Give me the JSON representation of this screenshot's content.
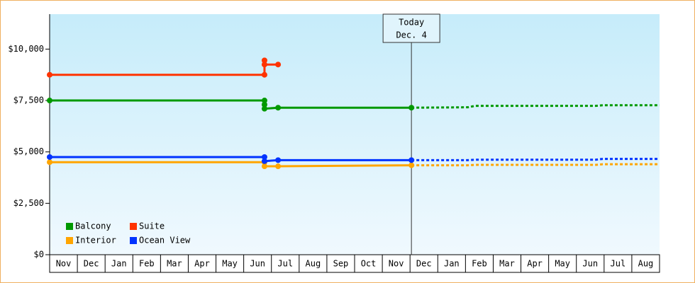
{
  "chart_data": {
    "type": "line",
    "categories": [
      "Nov",
      "Dec",
      "Jan",
      "Feb",
      "Mar",
      "Apr",
      "May",
      "Jun",
      "Jul",
      "Aug",
      "Sep",
      "Oct",
      "Nov",
      "Dec",
      "Jan",
      "Feb",
      "Mar",
      "Apr",
      "May",
      "Jun",
      "Jul",
      "Aug"
    ],
    "xlim": [
      0,
      22
    ],
    "ylim": [
      0,
      11700
    ],
    "yticks": [
      {
        "value": 0,
        "label": "$0"
      },
      {
        "value": 2500,
        "label": "$2,500"
      },
      {
        "value": 5000,
        "label": "$5,000"
      },
      {
        "value": 7500,
        "label": "$7,500"
      },
      {
        "value": 10000,
        "label": "$10,000"
      }
    ],
    "today": {
      "x": 13.05,
      "label": [
        "Today",
        "Dec. 4"
      ]
    },
    "legend": "lower left",
    "series": [
      {
        "name": "Balcony",
        "color": "#009900",
        "x": [
          0,
          7.75,
          7.75,
          7.75,
          8.24,
          13.05,
          15.09,
          15.35,
          19.7,
          19.95,
          22
        ],
        "values": [
          7500,
          7500,
          7300,
          7100,
          7150,
          7150,
          7170,
          7240,
          7240,
          7270,
          7270
        ]
      },
      {
        "name": "Suite",
        "color": "#ff3300",
        "x": [
          0,
          7.75,
          7.75,
          7.75,
          8.24
        ],
        "values": [
          8750,
          8750,
          9450,
          9250,
          9250
        ]
      },
      {
        "name": "Interior",
        "color": "#ffa500",
        "x": [
          0,
          7.75,
          7.75,
          8.24,
          13.05,
          15.09,
          15.35,
          19.7,
          19.95,
          22
        ],
        "values": [
          4500,
          4500,
          4300,
          4300,
          4350,
          4350,
          4370,
          4370,
          4400,
          4400
        ]
      },
      {
        "name": "Ocean View",
        "color": "#0033ff",
        "x": [
          0,
          7.75,
          7.75,
          8.24,
          13.05,
          15.09,
          15.35,
          19.7,
          19.95,
          22
        ],
        "values": [
          4750,
          4750,
          4550,
          4600,
          4600,
          4600,
          4620,
          4620,
          4660,
          4660
        ]
      }
    ]
  }
}
